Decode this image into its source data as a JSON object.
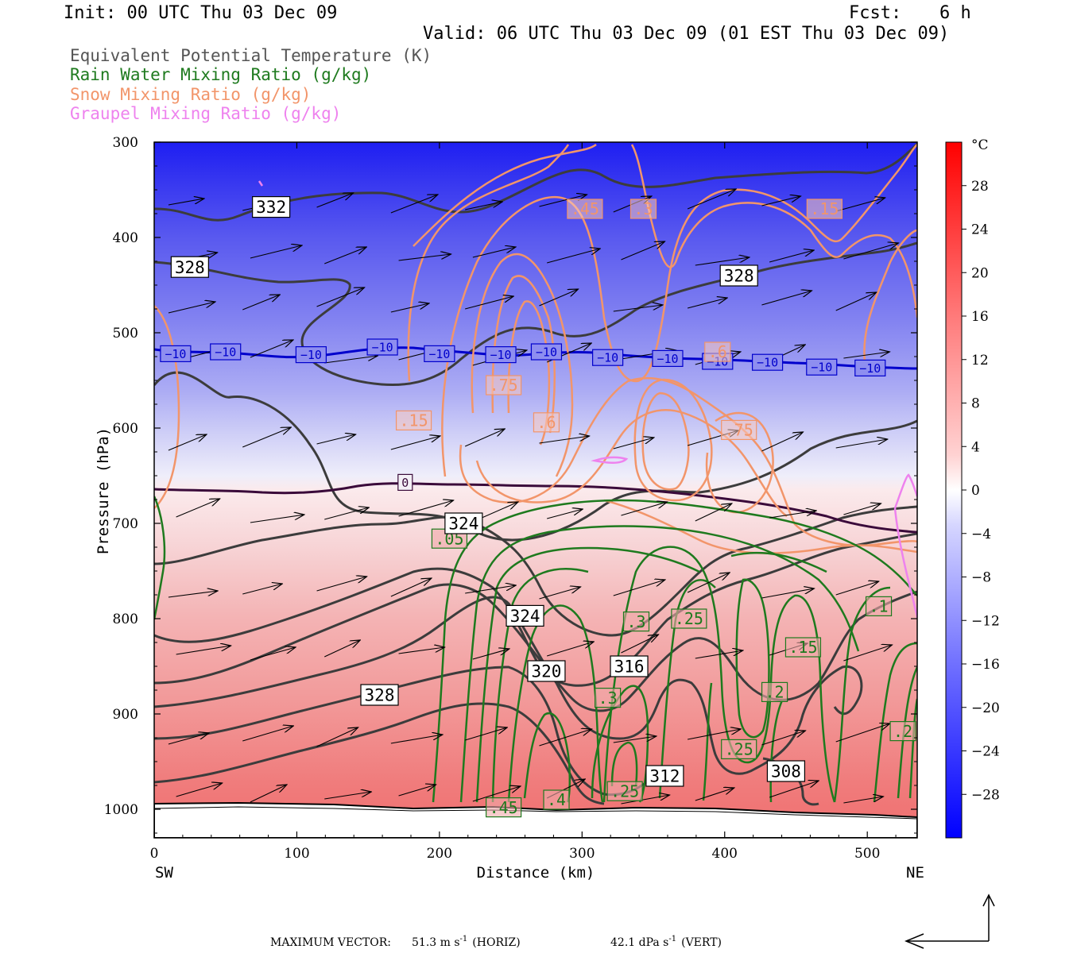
{
  "header": {
    "init": "Init: 00 UTC Thu 03 Dec 09",
    "fcst_label": "Fcst:",
    "fcst_value": "6 h",
    "valid": "Valid: 06 UTC Thu 03 Dec 09 (01 EST Thu 03 Dec 09)"
  },
  "legend": {
    "items": [
      {
        "label": "Equivalent Potential Temperature (K)",
        "color": "#555555"
      },
      {
        "label": "Rain Water Mixing Ratio (g/kg)",
        "color": "#1e7a1e"
      },
      {
        "label": "Snow Mixing Ratio (g/kg)",
        "color": "#f2956a"
      },
      {
        "label": "Graupel Mixing Ratio (g/kg)",
        "color": "#ee82ee"
      }
    ]
  },
  "colorbar": {
    "unit": "°C",
    "labels": [
      "28",
      "24",
      "20",
      "16",
      "12",
      "8",
      "4",
      "0",
      "−4",
      "−8",
      "−12",
      "−16",
      "−20",
      "−24",
      "−28"
    ],
    "cold_color": "#0000ff",
    "warm_color": "#ff0000"
  },
  "chart_data": {
    "type": "heatmap",
    "xlabel": "Distance (km)",
    "ylabel": "Pressure (hPa)",
    "xlim": [
      0,
      535
    ],
    "ylim": [
      300,
      1030
    ],
    "x_ticks": [
      "0",
      "100",
      "200",
      "300",
      "400",
      "500"
    ],
    "x_tick_values": [
      0,
      100,
      200,
      300,
      400,
      500
    ],
    "y_ticks": [
      "300",
      "400",
      "500",
      "600",
      "700",
      "800",
      "900",
      "1000"
    ],
    "y_tick_values": [
      300,
      400,
      500,
      600,
      700,
      800,
      900,
      1000
    ],
    "left_end_label": "SW",
    "right_end_label": "NE",
    "freezing_level_label": "0",
    "isotherm_minus10_labels": [
      {
        "text": "−10",
        "x": 15,
        "p": 522
      },
      {
        "text": "−10",
        "x": 50,
        "p": 520
      },
      {
        "text": "−10",
        "x": 110,
        "p": 523
      },
      {
        "text": "−10",
        "x": 160,
        "p": 515
      },
      {
        "text": "−10",
        "x": 200,
        "p": 522
      },
      {
        "text": "−10",
        "x": 243,
        "p": 523
      },
      {
        "text": "−10",
        "x": 275,
        "p": 520
      },
      {
        "text": "−10",
        "x": 318,
        "p": 526
      },
      {
        "text": "−10",
        "x": 360,
        "p": 527
      },
      {
        "text": "−10",
        "x": 395,
        "p": 530
      },
      {
        "text": "−10",
        "x": 430,
        "p": 531
      },
      {
        "text": "−10",
        "x": 468,
        "p": 536
      },
      {
        "text": "−10",
        "x": 502,
        "p": 537
      }
    ],
    "freezing_line_label_pos": {
      "x": 176,
      "p": 657
    },
    "theta_e_labels": [
      {
        "text": "332",
        "x": 82,
        "p": 368
      },
      {
        "text": "328",
        "x": 25,
        "p": 431
      },
      {
        "text": "328",
        "x": 410,
        "p": 440
      },
      {
        "text": "324",
        "x": 217,
        "p": 700
      },
      {
        "text": "324",
        "x": 260,
        "p": 797
      },
      {
        "text": "320",
        "x": 275,
        "p": 855
      },
      {
        "text": "316",
        "x": 333,
        "p": 850
      },
      {
        "text": "328",
        "x": 158,
        "p": 880
      },
      {
        "text": "312",
        "x": 358,
        "p": 965
      },
      {
        "text": "308",
        "x": 443,
        "p": 960
      }
    ],
    "snow_labels": [
      {
        "text": ".45",
        "x": 302,
        "p": 370
      },
      {
        "text": ".3",
        "x": 343,
        "p": 370
      },
      {
        "text": ".15",
        "x": 470,
        "p": 370
      },
      {
        "text": ".75",
        "x": 245,
        "p": 555
      },
      {
        "text": ".15",
        "x": 182,
        "p": 592
      },
      {
        "text": ".6",
        "x": 275,
        "p": 594
      },
      {
        "text": ".75",
        "x": 410,
        "p": 602
      },
      {
        "text": ".6",
        "x": 395,
        "p": 520
      }
    ],
    "rain_labels": [
      {
        "text": ".05",
        "x": 207,
        "p": 716
      },
      {
        "text": ".3",
        "x": 338,
        "p": 803
      },
      {
        "text": ".25",
        "x": 375,
        "p": 800
      },
      {
        "text": ".1",
        "x": 508,
        "p": 787
      },
      {
        "text": ".15",
        "x": 455,
        "p": 830
      },
      {
        "text": ".3",
        "x": 318,
        "p": 883
      },
      {
        "text": ".2",
        "x": 435,
        "p": 877
      },
      {
        "text": ".25",
        "x": 410,
        "p": 937
      },
      {
        "text": ".2",
        "x": 525,
        "p": 918
      },
      {
        "text": ".45",
        "x": 245,
        "p": 998
      },
      {
        "text": ".4",
        "x": 282,
        "p": 990
      },
      {
        "text": ".25",
        "x": 330,
        "p": 981
      }
    ],
    "arrow_rows_hpa": [
      370,
      425,
      475,
      530,
      620,
      695,
      775,
      840,
      930,
      990
    ]
  },
  "footer": {
    "max_vector_label": "MAXIMUM VECTOR:",
    "horiz_value": "51.3 m s",
    "horiz_exp": "-1",
    "horiz_tag": "(HORIZ)",
    "vert_value": "42.1 dPa s",
    "vert_exp": "-1",
    "vert_tag": "(VERT)"
  }
}
